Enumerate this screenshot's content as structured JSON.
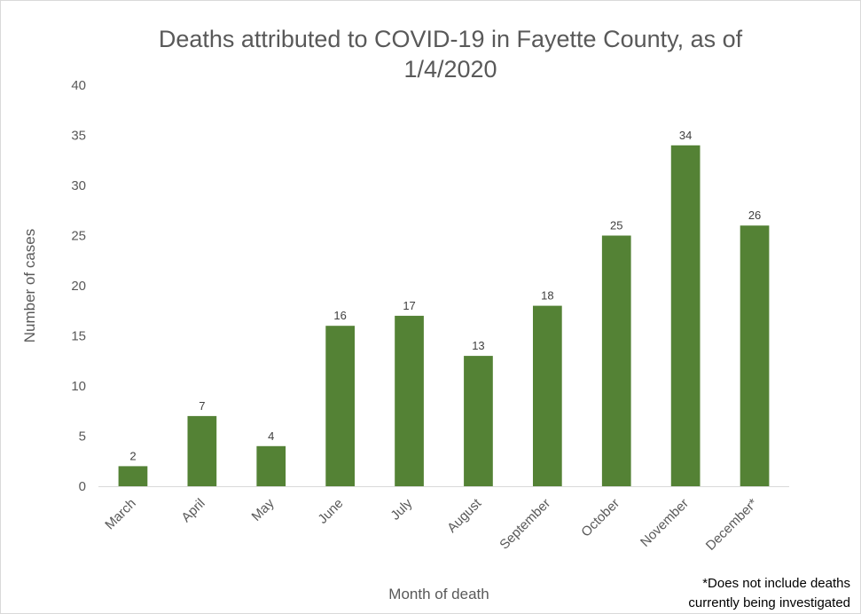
{
  "chart_data": {
    "type": "bar",
    "title_lines": [
      "Deaths attributed to COVID-19 in Fayette County, as of",
      "1/4/2020"
    ],
    "categories": [
      "March",
      "April",
      "May",
      "June",
      "July",
      "August",
      "September",
      "October",
      "November",
      "December*"
    ],
    "values": [
      2,
      7,
      4,
      16,
      17,
      13,
      18,
      25,
      34,
      26
    ],
    "xlabel": "Month of death",
    "ylabel": "Number of cases",
    "ylim": [
      0,
      40
    ],
    "yticks": [
      0,
      5,
      10,
      15,
      20,
      25,
      30,
      35,
      40
    ],
    "grid": false,
    "legend": "none",
    "bar_color": "#548235",
    "footnote_lines": [
      "*Does not include deaths",
      "currently being investigated"
    ]
  }
}
